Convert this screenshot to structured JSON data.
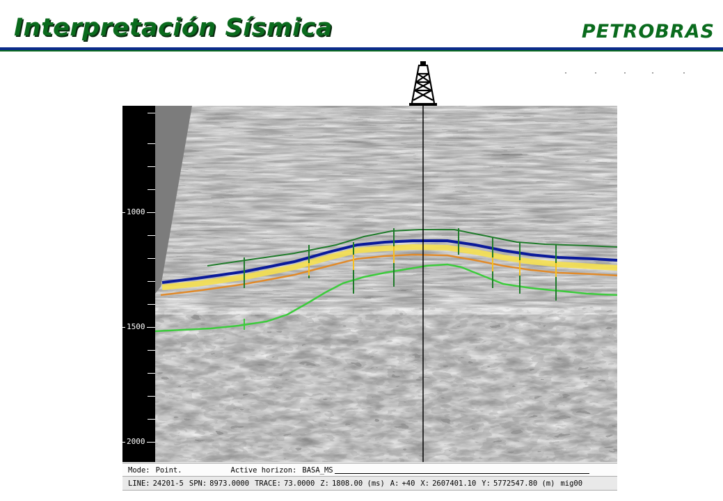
{
  "slide": {
    "title": "Interpretación Sísmica",
    "brand": "PETROBRAS"
  },
  "well_icon": "oil-derrick-icon",
  "depth_axis": {
    "labels": [
      "1000",
      "1500",
      "2000"
    ]
  },
  "status": {
    "mode_label": "Mode:",
    "mode_value": "Point.",
    "active_horizon_label": "Active horizon:",
    "active_horizon_value": "BASA_MS",
    "line_label": "LINE:",
    "line_value": "24201-5",
    "spn_label": "SPN:",
    "spn_value": "8973.0000",
    "trace_label": "TRACE:",
    "trace_value": "73.0000",
    "z_label": "Z:",
    "z_value": "1808.00 (ms)",
    "a_label": "A:",
    "a_value": "+40",
    "x_label": "X:",
    "x_value": "2607401.10",
    "y_label": "Y:",
    "y_value": "5772547.80 (m)",
    "volume_value": "mig00"
  },
  "colors": {
    "title_green": "#0a6b1d",
    "rule_blue": "#0b2b8a",
    "horizon_dark_green": "#1f7a2a",
    "horizon_blue": "#0a1a9a",
    "horizon_yellow": "#f5e050",
    "horizon_orange": "#e08a2a",
    "horizon_bright_green": "#3ccb3c"
  }
}
